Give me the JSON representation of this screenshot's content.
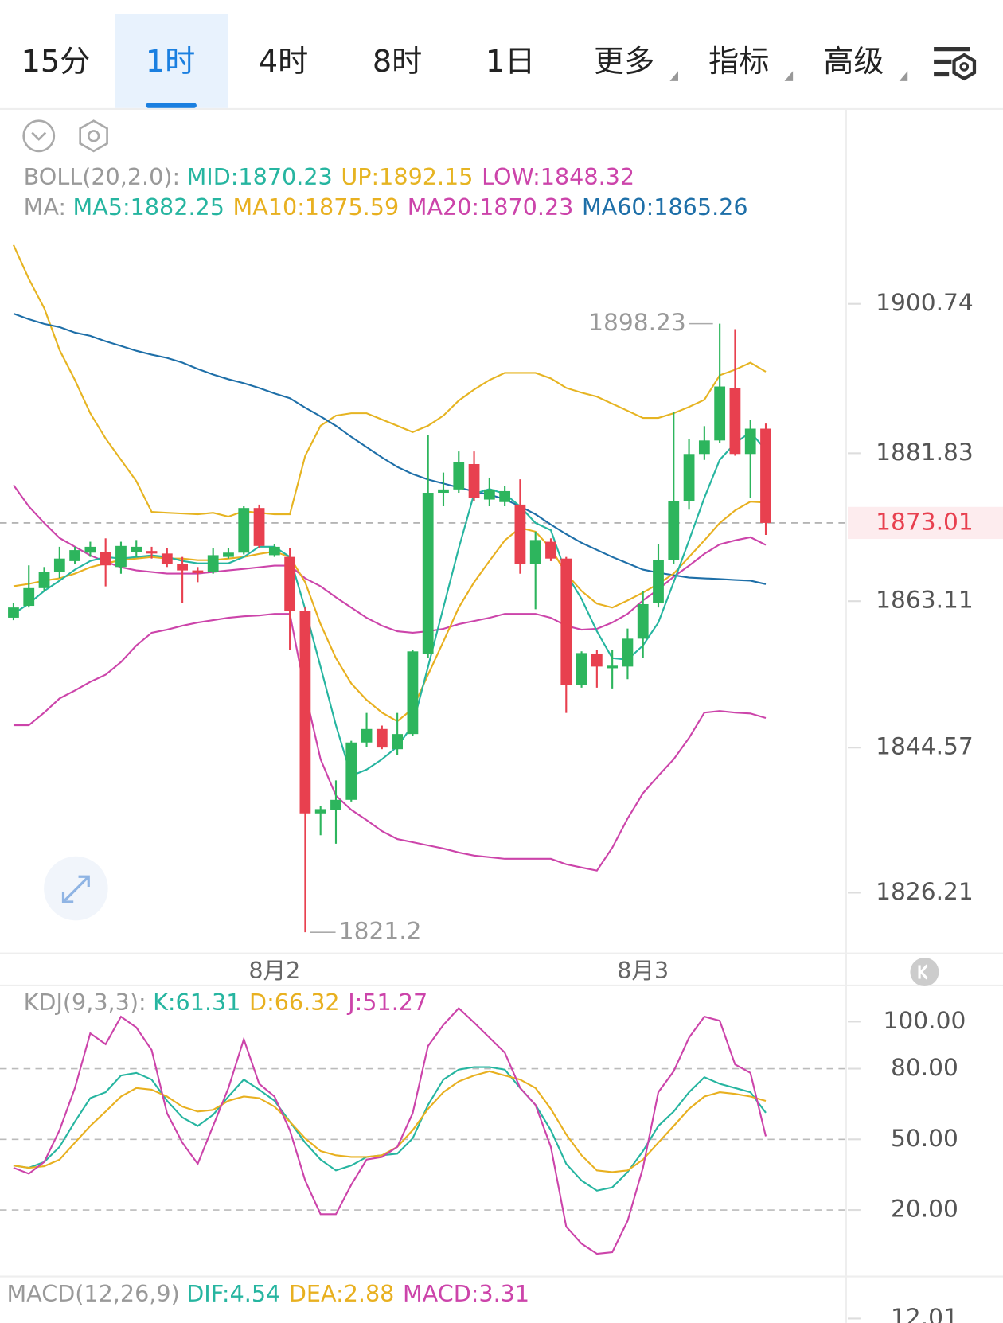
{
  "toolbar": {
    "tabs": [
      "15分",
      "1时",
      "4时",
      "8时",
      "1日",
      "更多",
      "指标",
      "高级"
    ],
    "active": 1,
    "menus": [
      5,
      6,
      7
    ]
  },
  "chart_data": [
    {
      "type": "candlestick",
      "categories": [
        null,
        null,
        null,
        null,
        null,
        null,
        null,
        null,
        null,
        null,
        null,
        null,
        null,
        null,
        null,
        null,
        null,
        "8月2",
        null,
        null,
        null,
        null,
        null,
        null,
        null,
        null,
        null,
        null,
        null,
        null,
        null,
        null,
        null,
        null,
        null,
        null,
        null,
        null,
        null,
        null,
        null,
        "8月3",
        null,
        null,
        null,
        null,
        null,
        null,
        null,
        null
      ],
      "open": [
        1861.02,
        1862.52,
        1864.76,
        1866.79,
        1868.18,
        1869.25,
        1869.35,
        1867.43,
        1869.35,
        1869.46,
        1869.14,
        1867.86,
        1867.0,
        1866.79,
        1868.71,
        1869.25,
        1874.9,
        1868.93,
        1868.71,
        1861.88,
        1836.25,
        1836.68,
        1837.96,
        1845.22,
        1846.93,
        1844.37,
        1846.29,
        1856.43,
        1876.83,
        1877.25,
        1880.46,
        1875.97,
        1875.65,
        1875.33,
        1867.86,
        1870.63,
        1868.5,
        1852.48,
        1856.43,
        1854.62,
        1854.83,
        1858.36,
        1862.84,
        1868.28,
        1875.76,
        1881.74,
        1883.45,
        1890.07,
        1881.74,
        1884.94
      ],
      "high": [
        1862.84,
        1867.64,
        1867.43,
        1869.99,
        1869.99,
        1870.63,
        1871.06,
        1870.63,
        1870.85,
        1869.99,
        1869.78,
        1868.71,
        1867.43,
        1869.78,
        1869.78,
        1875.12,
        1875.33,
        1870.31,
        1869.78,
        1862.31,
        1837.21,
        1840.42,
        1845.44,
        1848.96,
        1847.36,
        1848.96,
        1856.97,
        1884.19,
        1879.39,
        1882.06,
        1882.06,
        1878.75,
        1877.68,
        1878.53,
        1871.91,
        1871.06,
        1868.71,
        1856.76,
        1856.97,
        1856.97,
        1859.64,
        1864.44,
        1870.31,
        1887.08,
        1883.66,
        1885.26,
        1898.23,
        1897.54,
        1886.01,
        1885.58
      ],
      "low": [
        1860.7,
        1862.31,
        1864.44,
        1866.04,
        1867.86,
        1868.71,
        1864.98,
        1866.58,
        1868.71,
        1868.5,
        1867.43,
        1862.84,
        1865.51,
        1866.58,
        1868.5,
        1869.03,
        1869.78,
        1868.71,
        1856.97,
        1821.2,
        1833.48,
        1832.41,
        1837.75,
        1844.69,
        1844.37,
        1843.62,
        1846.08,
        1855.9,
        1875.12,
        1876.83,
        1875.76,
        1875.12,
        1875.12,
        1866.58,
        1862.09,
        1868.18,
        1848.96,
        1852.16,
        1852.16,
        1852.06,
        1853.23,
        1855.9,
        1862.31,
        1867.86,
        1874.69,
        1880.99,
        1883.13,
        1881.52,
        1876.19,
        1871.49
      ],
      "close": [
        1862.31,
        1864.76,
        1866.79,
        1868.5,
        1869.57,
        1869.99,
        1867.64,
        1870.1,
        1869.99,
        1869.14,
        1867.86,
        1867.0,
        1866.68,
        1868.93,
        1869.25,
        1874.9,
        1870.1,
        1869.99,
        1861.88,
        1836.25,
        1836.79,
        1837.96,
        1845.22,
        1846.93,
        1844.58,
        1846.29,
        1856.75,
        1876.83,
        1877.25,
        1880.67,
        1876.19,
        1877.25,
        1877.04,
        1867.86,
        1870.85,
        1868.5,
        1852.48,
        1856.54,
        1854.83,
        1854.94,
        1858.36,
        1862.73,
        1868.28,
        1875.76,
        1881.74,
        1883.45,
        1890.28,
        1881.74,
        1884.94,
        1873.01
      ],
      "up_color": "#2db55d",
      "down_color": "#e8404f",
      "series": [
        {
          "color": "#e6b422",
          "values": [
            1908.2,
            1903.9,
            1900.2,
            1894.9,
            1891.1,
            1886.9,
            1883.7,
            1881.0,
            1878.3,
            1874.4,
            1874.3,
            1874.2,
            1874.1,
            1874.3,
            1873.8,
            1874.5,
            1874.3,
            1874.1,
            1874.1,
            1881.5,
            1885.3,
            1886.6,
            1886.9,
            1886.9,
            1886.1,
            1885.3,
            1884.5,
            1885.3,
            1886.6,
            1888.5,
            1889.9,
            1891.1,
            1892.0,
            1892.0,
            1892.0,
            1891.3,
            1890.1,
            1889.5,
            1889.0,
            1888.1,
            1887.2,
            1886.3,
            1886.3,
            1886.9,
            1887.7,
            1888.6,
            1891.7,
            1892.4,
            1893.3,
            1892.15
          ]
        },
        {
          "color": "#cc44aa",
          "values": [
            1847.4,
            1847.4,
            1849.0,
            1850.8,
            1851.8,
            1852.9,
            1853.8,
            1855.4,
            1857.5,
            1859.1,
            1859.5,
            1860.0,
            1860.4,
            1860.7,
            1861.0,
            1861.2,
            1861.3,
            1861.5,
            1861.5,
            1851.6,
            1843.1,
            1838.5,
            1836.7,
            1835.4,
            1834.0,
            1833.0,
            1832.6,
            1832.2,
            1831.8,
            1831.3,
            1830.9,
            1830.7,
            1830.5,
            1830.5,
            1830.5,
            1830.5,
            1829.8,
            1829.4,
            1829.0,
            1831.9,
            1835.6,
            1838.8,
            1841.0,
            1843.1,
            1845.8,
            1849.0,
            1849.2,
            1849.0,
            1848.9,
            1848.32
          ]
        },
        {
          "color": "#cc44aa",
          "values": [
            1877.8,
            1875.1,
            1873.0,
            1871.1,
            1870.0,
            1868.9,
            1868.1,
            1867.4,
            1867.0,
            1866.8,
            1866.6,
            1866.6,
            1866.6,
            1866.8,
            1867.0,
            1867.2,
            1867.4,
            1867.6,
            1867.6,
            1866.0,
            1865.0,
            1863.6,
            1862.3,
            1861.0,
            1860.0,
            1859.3,
            1859.1,
            1859.3,
            1859.6,
            1860.2,
            1860.6,
            1861.0,
            1861.5,
            1861.5,
            1861.5,
            1861.0,
            1860.0,
            1859.5,
            1859.6,
            1860.4,
            1861.5,
            1863.2,
            1864.6,
            1866.2,
            1867.6,
            1869.1,
            1870.3,
            1870.8,
            1871.2,
            1870.23
          ]
        },
        {
          "color": "#1e6fa8",
          "values": [
            1899.5,
            1898.8,
            1898.2,
            1897.8,
            1897.1,
            1896.7,
            1896.0,
            1895.4,
            1894.8,
            1894.3,
            1893.9,
            1893.3,
            1892.5,
            1891.8,
            1891.2,
            1890.7,
            1890.1,
            1889.4,
            1888.8,
            1887.6,
            1886.5,
            1885.3,
            1883.9,
            1882.6,
            1881.3,
            1880.1,
            1879.2,
            1878.5,
            1878.0,
            1877.5,
            1877.0,
            1876.6,
            1876.0,
            1875.1,
            1874.1,
            1872.8,
            1871.6,
            1870.5,
            1869.6,
            1868.7,
            1867.9,
            1867.1,
            1866.7,
            1866.4,
            1866.1,
            1866.0,
            1865.9,
            1865.8,
            1865.7,
            1865.26
          ]
        },
        {
          "color": "#e8b020",
          "values": [
            1865.0,
            1865.3,
            1865.7,
            1866.0,
            1866.6,
            1867.4,
            1867.9,
            1868.3,
            1868.5,
            1868.7,
            1868.5,
            1868.5,
            1868.3,
            1868.3,
            1868.5,
            1868.7,
            1869.1,
            1869.4,
            1868.7,
            1865.5,
            1860.2,
            1855.9,
            1852.7,
            1850.6,
            1849.0,
            1847.9,
            1849.5,
            1853.8,
            1858.0,
            1862.3,
            1865.5,
            1868.2,
            1870.8,
            1872.4,
            1871.9,
            1869.8,
            1866.6,
            1864.4,
            1862.8,
            1862.3,
            1863.2,
            1864.2,
            1865.3,
            1866.6,
            1868.7,
            1870.8,
            1873.0,
            1874.6,
            1875.7,
            1875.59
          ]
        },
        {
          "color": "#26b5a0",
          "values": [
            1861.5,
            1862.8,
            1864.4,
            1865.7,
            1867.1,
            1868.2,
            1868.7,
            1868.5,
            1868.7,
            1868.9,
            1868.7,
            1868.2,
            1867.9,
            1867.9,
            1867.9,
            1868.7,
            1870.0,
            1870.0,
            1868.7,
            1862.1,
            1854.8,
            1847.4,
            1841.0,
            1841.8,
            1843.1,
            1844.7,
            1847.4,
            1854.8,
            1862.3,
            1869.8,
            1876.7,
            1877.3,
            1876.7,
            1875.1,
            1873.0,
            1872.1,
            1866.6,
            1863.4,
            1859.3,
            1855.9,
            1855.7,
            1857.5,
            1860.4,
            1865.5,
            1870.8,
            1876.2,
            1881.0,
            1883.1,
            1884.5,
            1882.25
          ]
        }
      ],
      "legend": [
        {
          "title": "BOLL(20,2.0):",
          "items": [
            "MID:1870.23",
            "UP:1892.15",
            "LOW:1848.32"
          ],
          "colors": [
            "#26b5a0",
            "#e6b422",
            "#cc44aa"
          ]
        },
        {
          "title": "MA:",
          "items": [
            "MA5:1882.25",
            "MA10:1875.59",
            "MA20:1870.23",
            "MA60:1865.26"
          ],
          "colors": [
            "#26b5a0",
            "#e8b020",
            "#cc44aa",
            "#1e6fa8"
          ]
        }
      ],
      "ylim": [
        1818.53,
        1925.3
      ],
      "yticks": [
        1900.74,
        1881.83,
        1863.11,
        1844.57,
        1826.21
      ]
    },
    {
      "type": "line",
      "series": [
        {
          "color": "#26b5a0",
          "values": [
            38.9,
            37.9,
            40.4,
            46.8,
            57.5,
            67.5,
            70.0,
            77.1,
            78.2,
            75.4,
            66.4,
            59.3,
            55.7,
            60.4,
            68.2,
            75.4,
            71.1,
            66.4,
            57.5,
            48.6,
            41.4,
            36.8,
            38.9,
            42.5,
            43.2,
            43.9,
            50.4,
            64.6,
            75.4,
            79.6,
            80.7,
            80.7,
            79.6,
            71.8,
            64.6,
            53.9,
            39.6,
            32.5,
            28.2,
            29.6,
            36.1,
            45.0,
            55.7,
            61.8,
            70.0,
            76.4,
            73.6,
            71.8,
            70.0,
            61.31
          ]
        },
        {
          "color": "#e8b020",
          "values": [
            38.9,
            37.9,
            38.6,
            41.4,
            48.6,
            55.7,
            61.8,
            68.2,
            71.8,
            71.1,
            68.2,
            63.9,
            61.8,
            62.5,
            66.4,
            68.2,
            67.5,
            63.9,
            57.5,
            50.4,
            45.0,
            43.2,
            42.5,
            42.5,
            43.2,
            46.8,
            53.9,
            62.9,
            70.0,
            74.6,
            77.1,
            78.9,
            77.1,
            75.4,
            71.8,
            62.9,
            52.1,
            43.2,
            36.8,
            36.1,
            36.8,
            41.4,
            48.6,
            55.7,
            62.9,
            68.2,
            70.0,
            69.3,
            68.2,
            66.32
          ]
        },
        {
          "color": "#cc44aa",
          "values": [
            37.9,
            35.4,
            40.4,
            53.9,
            71.8,
            95.0,
            90.4,
            102.1,
            97.5,
            87.9,
            61.1,
            48.6,
            39.6,
            55.7,
            71.8,
            92.5,
            73.6,
            68.2,
            53.9,
            32.5,
            18.2,
            18.2,
            30.7,
            41.4,
            42.5,
            46.8,
            61.1,
            89.6,
            98.6,
            105.7,
            99.6,
            93.2,
            86.8,
            71.8,
            64.6,
            46.8,
            12.9,
            5.7,
            1.4,
            2.1,
            15.4,
            37.9,
            70.0,
            78.9,
            93.2,
            102.1,
            100.4,
            81.8,
            78.2,
            51.27
          ]
        }
      ],
      "legend": [
        {
          "title": "KDJ(9,3,3):",
          "items": [
            "K:61.31",
            "D:66.32",
            "J:51.27"
          ],
          "colors": [
            "#26b5a0",
            "#e8b020",
            "#cc44aa"
          ]
        }
      ],
      "ylim": [
        -7.86,
        114.64
      ],
      "yticks": [
        {
          "value": 100,
          "label": "100.00"
        },
        {
          "value": 80,
          "label": "80.00"
        },
        {
          "value": 50,
          "label": "50.00"
        },
        {
          "value": 20,
          "label": "20.00"
        }
      ],
      "reference_lines": [
        80,
        50,
        20
      ]
    },
    {
      "type": "bar",
      "legend": [
        {
          "title": "MACD(12,26,9)",
          "items": [
            "DIF:4.54",
            "DEA:2.88",
            "MACD:3.31"
          ],
          "colors": [
            "#26b5a0",
            "#e8b020",
            "#cc44aa"
          ]
        }
      ],
      "ylim": [
        11.8,
        14
      ],
      "yticks": [
        12.01
      ]
    }
  ]
}
